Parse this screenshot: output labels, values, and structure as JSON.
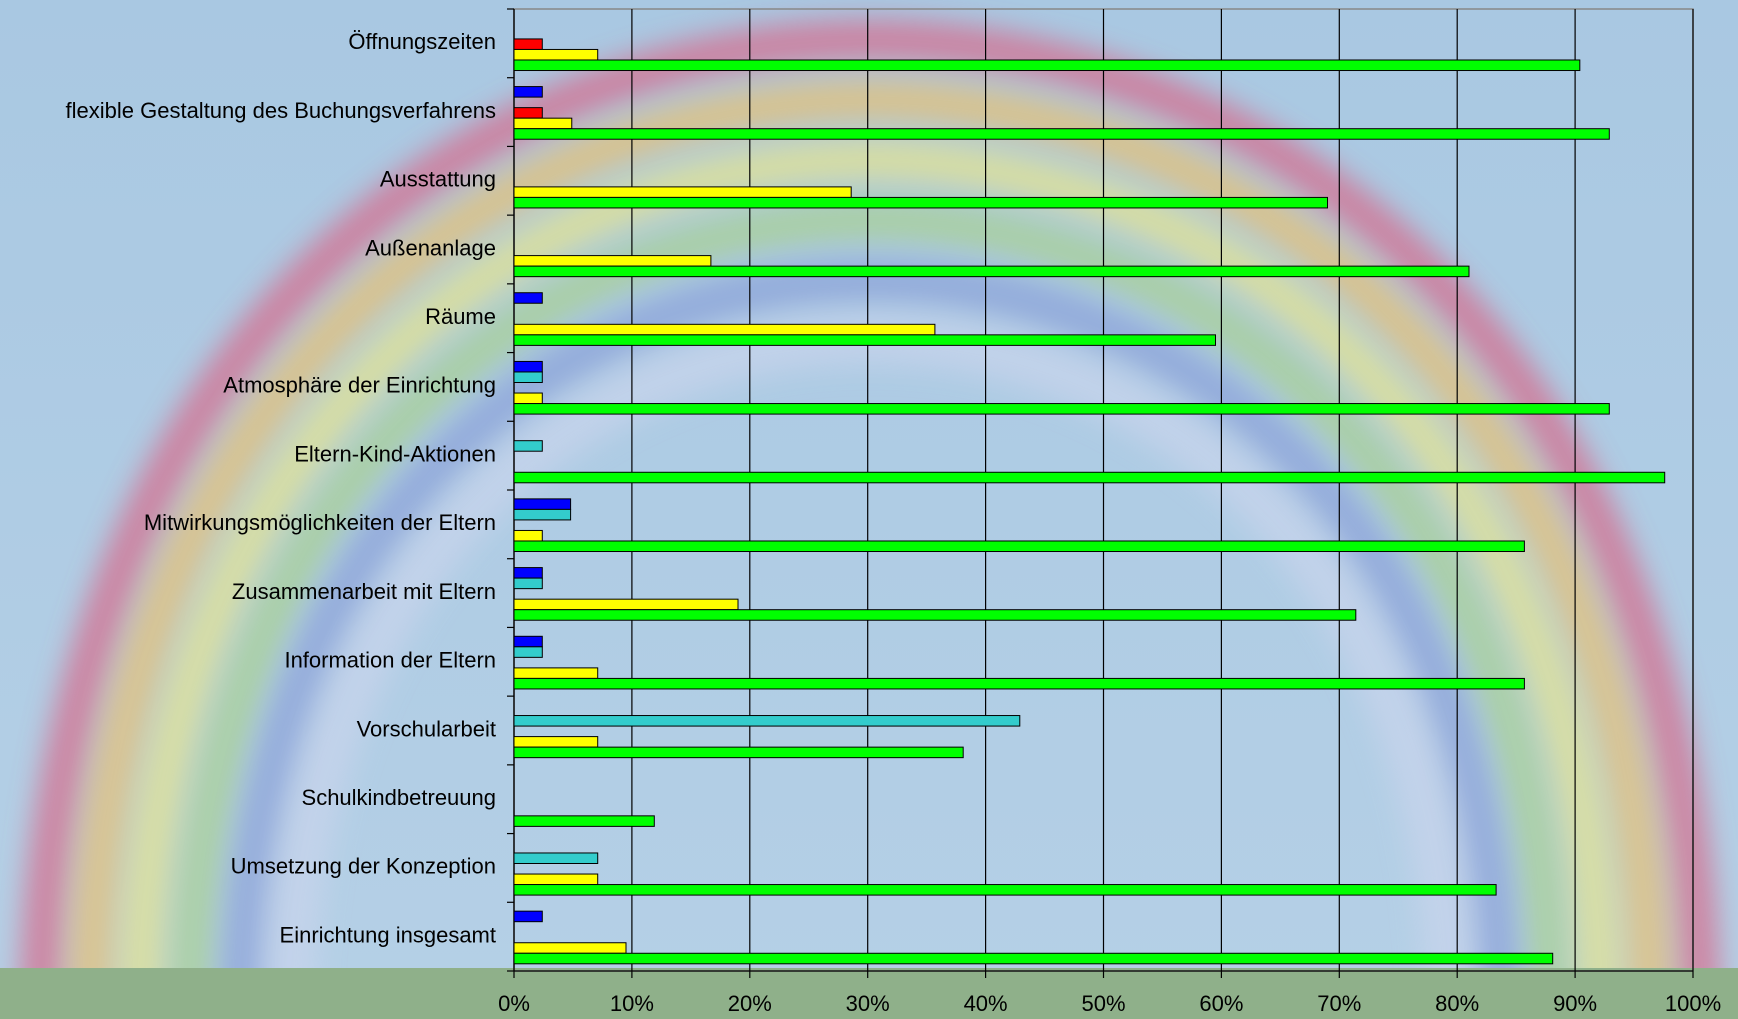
{
  "chart_data": {
    "type": "hbar",
    "categories": [
      "Öffnungszeiten",
      "flexible Gestaltung des Buchungsverfahrens",
      "Ausstattung",
      "Außenanlage",
      "Räume",
      "Atmosphäre der Einrichtung",
      "Eltern-Kind-Aktionen",
      "Mitwirkungsmöglichkeiten der Eltern",
      "Zusammenarbeit mit Eltern",
      "Information der Eltern",
      "Vorschularbeit",
      "Schulkindbetreuung",
      "Umsetzung der Konzeption",
      "Einrichtung insgesamt"
    ],
    "series": [
      {
        "color": "#0000ff",
        "values": [
          null,
          2.4,
          null,
          null,
          2.4,
          2.4,
          null,
          4.8,
          2.4,
          2.4,
          null,
          null,
          null,
          2.4
        ]
      },
      {
        "color": "#33cccc",
        "values": [
          null,
          null,
          null,
          null,
          null,
          2.4,
          2.4,
          4.8,
          2.4,
          2.4,
          42.9,
          null,
          7.1,
          null
        ]
      },
      {
        "color": "#ff0000",
        "values": [
          2.4,
          2.4,
          null,
          null,
          null,
          null,
          null,
          null,
          null,
          null,
          null,
          null,
          null,
          null
        ]
      },
      {
        "color": "#ffff00",
        "values": [
          7.1,
          4.9,
          28.6,
          16.7,
          35.7,
          2.4,
          null,
          2.4,
          19.0,
          7.1,
          7.1,
          null,
          7.1,
          9.5
        ]
      },
      {
        "color": "#00ff00",
        "values": [
          90.4,
          92.9,
          69.0,
          81.0,
          59.5,
          92.9,
          97.6,
          85.7,
          71.4,
          85.7,
          38.1,
          11.9,
          83.3,
          88.1
        ]
      }
    ],
    "xlim": [
      0,
      100
    ],
    "xticks": [
      {
        "value": 0,
        "label": "0%"
      },
      {
        "value": 10,
        "label": "10%"
      },
      {
        "value": 20,
        "label": "20%"
      },
      {
        "value": 30,
        "label": "30%"
      },
      {
        "value": 40,
        "label": "40%"
      },
      {
        "value": 50,
        "label": "50%"
      },
      {
        "value": 60,
        "label": "60%"
      },
      {
        "value": 70,
        "label": "70%"
      },
      {
        "value": 80,
        "label": "80%"
      },
      {
        "value": 90,
        "label": "90%"
      },
      {
        "value": 100,
        "label": "100%"
      }
    ],
    "grid": true
  }
}
